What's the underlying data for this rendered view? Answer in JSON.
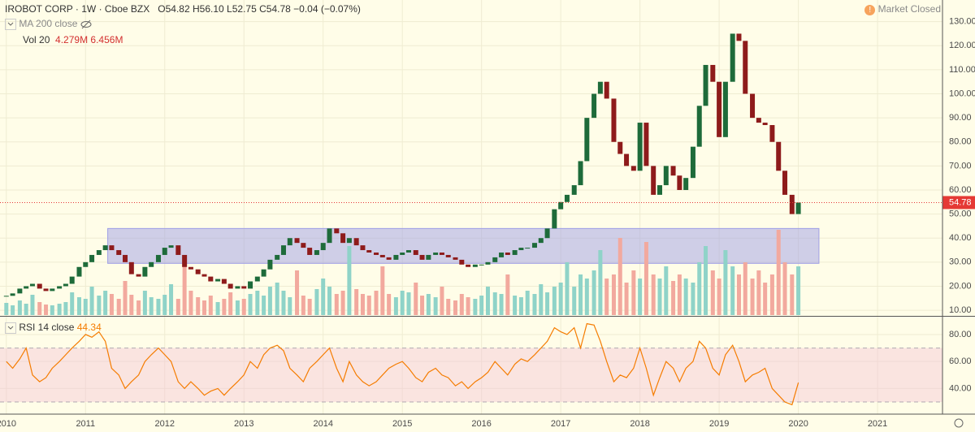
{
  "header": {
    "symbol": "IROBOT CORP · 1W · Cboe BZX",
    "ohlc": [
      {
        "label": "O",
        "value": "54.82"
      },
      {
        "label": "H",
        "value": "56.10"
      },
      {
        "label": "L",
        "value": "52.75"
      },
      {
        "label": "C",
        "value": "54.78"
      }
    ],
    "change": "−0.04 (−0.07%)",
    "status": "Market Closed",
    "ma_label": "MA 200 close",
    "vol_label": "Vol 20",
    "vol_values": [
      "4.279M",
      "6.456M"
    ]
  },
  "chart_data": [
    {
      "type": "candlestick",
      "x": [
        2010,
        2010.08,
        2010.17,
        2010.25,
        2010.33,
        2010.42,
        2010.5,
        2010.58,
        2010.67,
        2010.75,
        2010.83,
        2010.92,
        2011,
        2011.08,
        2011.17,
        2011.25,
        2011.33,
        2011.42,
        2011.5,
        2011.58,
        2011.67,
        2011.75,
        2011.83,
        2011.92,
        2012,
        2012.08,
        2012.17,
        2012.25,
        2012.33,
        2012.42,
        2012.5,
        2012.58,
        2012.67,
        2012.75,
        2012.83,
        2012.92,
        2013,
        2013.08,
        2013.17,
        2013.25,
        2013.33,
        2013.42,
        2013.5,
        2013.58,
        2013.67,
        2013.75,
        2013.83,
        2013.92,
        2014,
        2014.08,
        2014.17,
        2014.25,
        2014.33,
        2014.42,
        2014.5,
        2014.58,
        2014.67,
        2014.75,
        2014.83,
        2014.92,
        2015,
        2015.08,
        2015.17,
        2015.25,
        2015.33,
        2015.42,
        2015.5,
        2015.58,
        2015.67,
        2015.75,
        2015.83,
        2015.92,
        2016,
        2016.08,
        2016.17,
        2016.25,
        2016.33,
        2016.42,
        2016.5,
        2016.58,
        2016.67,
        2016.75,
        2016.83,
        2016.92,
        2017,
        2017.08,
        2017.17,
        2017.25,
        2017.33,
        2017.42,
        2017.5,
        2017.58,
        2017.67,
        2017.75,
        2017.83,
        2017.92,
        2018,
        2018.08,
        2018.17,
        2018.25,
        2018.33,
        2018.42,
        2018.5,
        2018.58,
        2018.67,
        2018.75,
        2018.83,
        2018.92,
        2019,
        2019.08,
        2019.17,
        2019.25,
        2019.33,
        2019.42,
        2019.5,
        2019.58,
        2019.67,
        2019.75,
        2019.83,
        2019.92,
        2020
      ],
      "close": [
        16,
        17,
        19,
        20,
        21,
        19,
        18,
        19,
        20,
        21,
        24,
        28,
        30,
        33,
        35,
        37,
        35,
        33,
        30,
        25,
        24,
        28,
        30,
        33,
        36,
        37,
        33,
        28,
        27,
        25,
        24,
        22,
        23,
        21,
        19,
        20,
        19,
        22,
        24,
        27,
        31,
        33,
        37,
        40,
        38,
        36,
        33,
        35,
        38,
        44,
        42,
        38,
        40,
        37,
        35,
        34,
        33,
        32,
        31,
        33,
        34,
        35,
        33,
        31,
        33,
        34,
        33,
        32,
        31,
        29,
        28,
        29,
        29,
        30,
        32,
        34,
        33,
        35,
        36,
        36,
        38,
        40,
        44,
        52,
        55,
        58,
        62,
        72,
        90,
        100,
        105,
        98,
        80,
        75,
        70,
        68,
        88,
        70,
        58,
        62,
        70,
        66,
        60,
        65,
        78,
        95,
        112,
        105,
        82,
        105,
        125,
        122,
        100,
        90,
        88,
        87,
        80,
        68,
        58,
        50,
        54.78
      ],
      "up_color": "#1e6b3a",
      "down_color": "#8e1b1b",
      "volume": {
        "values": [
          1.5,
          1.2,
          1.8,
          1.4,
          2.5,
          1.6,
          1.3,
          1.2,
          1.4,
          1.6,
          2.8,
          2.2,
          2.0,
          3.5,
          2.4,
          3.0,
          2.6,
          2.0,
          4.2,
          2.5,
          1.8,
          3.0,
          2.2,
          2.0,
          2.5,
          3.8,
          2.0,
          6.5,
          3.0,
          2.2,
          1.8,
          2.4,
          1.6,
          2.0,
          2.8,
          1.8,
          2.0,
          2.6,
          3.0,
          2.4,
          3.5,
          4.0,
          3.0,
          2.2,
          5.5,
          2.4,
          2.0,
          3.2,
          4.5,
          3.5,
          2.6,
          3.0,
          8.5,
          3.2,
          2.6,
          2.4,
          3.0,
          6.0,
          2.6,
          2.2,
          3.0,
          2.8,
          4.0,
          2.4,
          2.6,
          2.2,
          3.5,
          2.0,
          1.8,
          2.6,
          2.2,
          2.0,
          2.4,
          3.5,
          2.8,
          2.6,
          5.0,
          2.4,
          2.2,
          3.0,
          2.6,
          3.8,
          2.8,
          3.5,
          4.0,
          6.5,
          3.5,
          5.0,
          4.5,
          5.5,
          8.0,
          4.5,
          5.0,
          9.5,
          4.0,
          5.5,
          4.5,
          9.0,
          5.0,
          4.5,
          6.0,
          4.2,
          5.0,
          4.5,
          4.0,
          6.5,
          8.5,
          5.5,
          4.5,
          8.0,
          6.0,
          5.0,
          6.5,
          4.5,
          5.5,
          4.0,
          5.0,
          10.5,
          6.5,
          5.0,
          6.0
        ],
        "ylim": [
          0,
          30
        ],
        "up_color": "#8fd3c8",
        "down_color": "#f2a99e"
      },
      "box": {
        "x": [
          2011.28,
          2020.26
        ],
        "y": [
          29.5,
          44
        ],
        "color": "#9f9fe6"
      },
      "last_line_color": "#e53935",
      "xlim": [
        2009.92,
        2021.82
      ],
      "xticks": [
        2010,
        2011,
        2012,
        2013,
        2014,
        2015,
        2016,
        2017,
        2018,
        2019,
        2020,
        2021
      ],
      "ylim": [
        8,
        139
      ],
      "yticks": [
        {
          "value": 10,
          "label": "10.00"
        },
        {
          "value": 20,
          "label": "20.00"
        },
        {
          "value": 30,
          "label": "30.00"
        },
        {
          "value": 40,
          "label": "40.00"
        },
        {
          "value": 50,
          "label": "50.00"
        },
        {
          "value": 60,
          "label": "60.00"
        },
        {
          "value": 70,
          "label": "70.00"
        },
        {
          "value": 80,
          "label": "80.00"
        },
        {
          "value": 90,
          "label": "90.00"
        },
        {
          "value": 100,
          "label": "100.00"
        },
        {
          "value": 110,
          "label": "110.00"
        },
        {
          "value": 120,
          "label": "120.00"
        },
        {
          "value": 130,
          "label": "130.00"
        }
      ],
      "grid": true
    },
    {
      "type": "line",
      "title": "RSI 14 close",
      "series": [
        {
          "name": "RSI",
          "color": "#f57c00",
          "values": [
            60,
            55,
            62,
            70,
            50,
            45,
            48,
            55,
            60,
            65,
            70,
            75,
            80,
            78,
            82,
            75,
            55,
            50,
            40,
            45,
            50,
            60,
            65,
            70,
            65,
            60,
            45,
            40,
            45,
            40,
            35,
            38,
            40,
            35,
            40,
            45,
            50,
            60,
            55,
            65,
            70,
            72,
            68,
            55,
            50,
            45,
            55,
            60,
            65,
            70,
            55,
            45,
            60,
            50,
            45,
            42,
            45,
            50,
            55,
            58,
            60,
            55,
            48,
            45,
            52,
            55,
            50,
            48,
            42,
            45,
            40,
            45,
            48,
            52,
            60,
            55,
            50,
            58,
            62,
            60,
            65,
            70,
            75,
            85,
            82,
            80,
            85,
            70,
            88,
            87,
            75,
            60,
            45,
            50,
            48,
            55,
            70,
            55,
            35,
            48,
            60,
            55,
            45,
            55,
            60,
            75,
            70,
            55,
            50,
            65,
            72,
            60,
            45,
            50,
            52,
            55,
            40,
            35,
            30,
            28,
            44.34
          ]
        }
      ],
      "band": [
        30,
        70
      ],
      "band_color": "#f3c6d6",
      "ylim": [
        21,
        92
      ],
      "yticks": [
        {
          "value": 40,
          "label": "40.00"
        },
        {
          "value": 60,
          "label": "60.00"
        },
        {
          "value": 80,
          "label": "80.00"
        }
      ],
      "grid": true
    }
  ]
}
